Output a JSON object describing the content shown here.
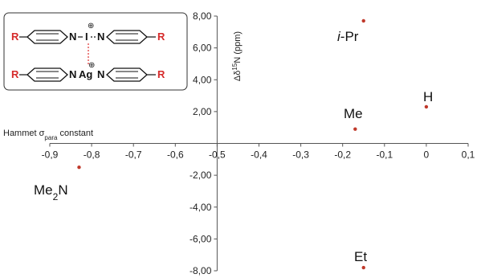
{
  "chart_data": {
    "type": "scatter",
    "xlabel": {
      "prefix": "Hammet σ",
      "sub": "para",
      "suffix": " constant"
    },
    "ylabel": {
      "prefix": "Δδ",
      "sup": "15",
      "suffix": "N (ppm)"
    },
    "xlim": [
      -0.9,
      0.1
    ],
    "ylim": [
      -8,
      8
    ],
    "x_ticks": [
      -0.9,
      -0.8,
      -0.7,
      -0.6,
      -0.5,
      -0.4,
      -0.3,
      -0.2,
      -0.1,
      0,
      0.1
    ],
    "x_tick_labels": [
      "-0,9",
      "-0,8",
      "-0,7",
      "-0,6",
      "-0,5",
      "-0,4",
      "-0,3",
      "-0,2",
      "-0,1",
      "0",
      "0,1"
    ],
    "y_ticks": [
      8,
      6,
      4,
      2,
      -2,
      -4,
      -6,
      -8
    ],
    "y_tick_labels": [
      "8,00",
      "6,00",
      "4,00",
      "2,00",
      "-2,00",
      "-4,00",
      "-6,00",
      "-8,00"
    ],
    "points": [
      {
        "label": "i-Pr",
        "label_main": "-Pr",
        "label_italic": "i",
        "x": -0.15,
        "y": 7.7
      },
      {
        "label": "H",
        "x": 0.0,
        "y": 2.3
      },
      {
        "label": "Me",
        "x": -0.17,
        "y": 0.9
      },
      {
        "label": "Me2N",
        "label_main": "Me",
        "label_sub": "2",
        "label_end": "N",
        "x": -0.83,
        "y": -1.5
      },
      {
        "label": "Et",
        "x": -0.15,
        "y": -7.8
      }
    ],
    "marker_color": "#c0392b",
    "grid": false
  },
  "inset": {
    "substituent": "R",
    "atoms": {
      "n": "N",
      "i": "I",
      "ag": "Ag",
      "charge": "⊕"
    },
    "colors": {
      "r": "#d62b2b",
      "bond": "#e03030",
      "text": "#111111"
    }
  }
}
